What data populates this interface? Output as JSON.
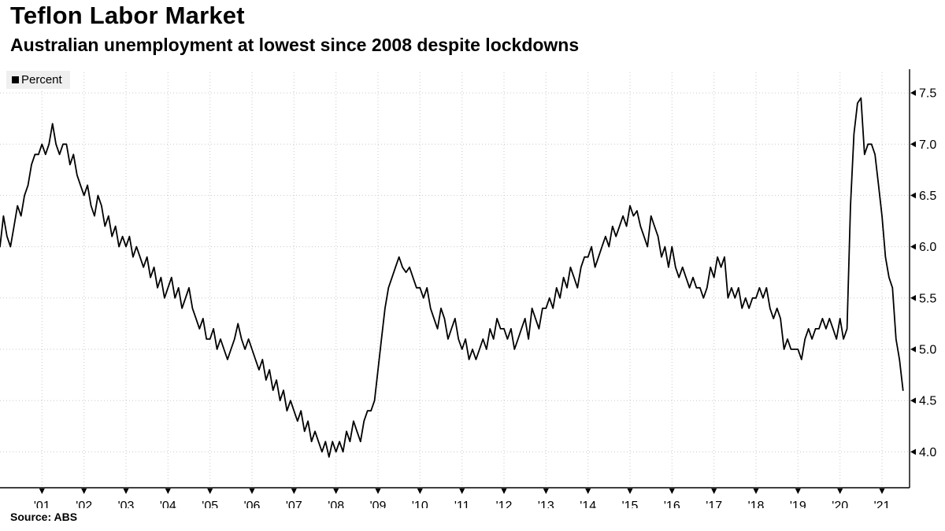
{
  "header": {
    "title": "Teflon Labor Market",
    "subtitle": "Australian unemployment at lowest since 2008 despite lockdowns"
  },
  "legend": {
    "label": "Percent",
    "marker_color": "#000000"
  },
  "footer": {
    "source": "Source: ABS"
  },
  "chart_data": {
    "type": "line",
    "title": "Teflon Labor Market",
    "subtitle": "Australian unemployment at lowest since 2008 despite lockdowns",
    "ylabel": "Percent",
    "xlabel": "",
    "axis_side": "right",
    "grid": "dotted",
    "background": "#ffffff",
    "ylim": [
      3.65,
      7.7
    ],
    "yticks": [
      4.0,
      4.5,
      5.0,
      5.5,
      6.0,
      6.5,
      7.0,
      7.5
    ],
    "xtick_years": [
      2001,
      2002,
      2003,
      2004,
      2005,
      2006,
      2007,
      2008,
      2009,
      2010,
      2011,
      2012,
      2013,
      2014,
      2015,
      2016,
      2017,
      2018,
      2019,
      2020,
      2021
    ],
    "xtick_labels": [
      "'01",
      "'02",
      "'03",
      "'04",
      "'05",
      "'06",
      "'07",
      "'08",
      "'09",
      "'10",
      "'11",
      "'12",
      "'13",
      "'14",
      "'15",
      "'16",
      "'17",
      "'18",
      "'19",
      "'20",
      "'21"
    ],
    "source": "Source: ABS",
    "series": [
      {
        "name": "Percent",
        "color": "#000000",
        "frequency": "monthly",
        "start_year": 2000,
        "start_month": 1,
        "values": [
          6.0,
          6.3,
          6.1,
          6.0,
          6.2,
          6.4,
          6.3,
          6.5,
          6.6,
          6.8,
          6.9,
          6.9,
          7.0,
          6.9,
          7.0,
          7.2,
          7.0,
          6.9,
          7.0,
          7.0,
          6.8,
          6.9,
          6.7,
          6.6,
          6.5,
          6.6,
          6.4,
          6.3,
          6.5,
          6.4,
          6.2,
          6.3,
          6.1,
          6.2,
          6.0,
          6.1,
          6.0,
          6.1,
          5.9,
          6.0,
          5.9,
          5.8,
          5.9,
          5.7,
          5.8,
          5.6,
          5.7,
          5.5,
          5.6,
          5.7,
          5.5,
          5.6,
          5.4,
          5.5,
          5.6,
          5.4,
          5.3,
          5.2,
          5.3,
          5.1,
          5.1,
          5.2,
          5.0,
          5.1,
          5.0,
          4.9,
          5.0,
          5.1,
          5.25,
          5.1,
          5.0,
          5.1,
          5.0,
          4.9,
          4.8,
          4.9,
          4.7,
          4.8,
          4.6,
          4.7,
          4.5,
          4.6,
          4.4,
          4.5,
          4.4,
          4.3,
          4.4,
          4.2,
          4.3,
          4.1,
          4.2,
          4.1,
          4.0,
          4.1,
          3.95,
          4.1,
          4.0,
          4.1,
          4.0,
          4.2,
          4.1,
          4.3,
          4.2,
          4.1,
          4.3,
          4.4,
          4.4,
          4.5,
          4.8,
          5.1,
          5.4,
          5.6,
          5.7,
          5.8,
          5.9,
          5.8,
          5.75,
          5.8,
          5.7,
          5.6,
          5.6,
          5.5,
          5.6,
          5.4,
          5.3,
          5.2,
          5.4,
          5.3,
          5.1,
          5.2,
          5.3,
          5.1,
          5.0,
          5.1,
          4.9,
          5.0,
          4.9,
          5.0,
          5.1,
          5.0,
          5.2,
          5.1,
          5.3,
          5.2,
          5.2,
          5.1,
          5.2,
          5.0,
          5.1,
          5.2,
          5.3,
          5.1,
          5.4,
          5.3,
          5.2,
          5.4,
          5.4,
          5.5,
          5.4,
          5.6,
          5.5,
          5.7,
          5.6,
          5.8,
          5.7,
          5.6,
          5.8,
          5.9,
          5.9,
          6.0,
          5.8,
          5.9,
          6.0,
          6.1,
          6.0,
          6.2,
          6.1,
          6.2,
          6.3,
          6.2,
          6.4,
          6.3,
          6.35,
          6.2,
          6.1,
          6.0,
          6.3,
          6.2,
          6.1,
          5.9,
          6.0,
          5.8,
          6.0,
          5.8,
          5.7,
          5.8,
          5.7,
          5.6,
          5.7,
          5.6,
          5.6,
          5.5,
          5.6,
          5.8,
          5.7,
          5.9,
          5.8,
          5.9,
          5.5,
          5.6,
          5.5,
          5.6,
          5.4,
          5.5,
          5.4,
          5.5,
          5.5,
          5.6,
          5.5,
          5.6,
          5.4,
          5.3,
          5.4,
          5.3,
          5.0,
          5.1,
          5.0,
          5.0,
          5.0,
          4.9,
          5.1,
          5.2,
          5.1,
          5.2,
          5.2,
          5.3,
          5.2,
          5.3,
          5.2,
          5.1,
          5.3,
          5.1,
          5.2,
          6.4,
          7.1,
          7.4,
          7.45,
          6.9,
          7.0,
          7.0,
          6.9,
          6.6,
          6.3,
          5.9,
          5.7,
          5.6,
          5.1,
          4.9,
          4.6
        ]
      }
    ]
  }
}
